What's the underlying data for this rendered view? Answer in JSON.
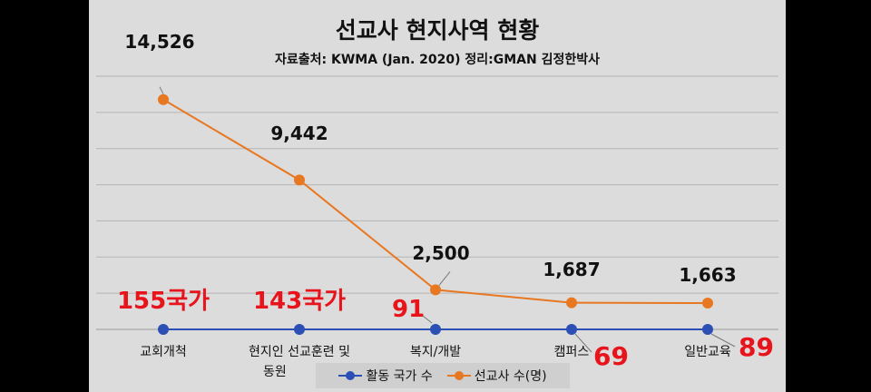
{
  "title": "선교사 현지사역 현황",
  "subtitle": "자료출처: KWMA (Jan. 2020) 정리:GMAN 김정한박사",
  "chart_data": {
    "type": "line",
    "categories": [
      "교회개척",
      "현지인 선교훈련 및 동원",
      "복지/개발",
      "캠퍼스",
      "일반교육"
    ],
    "series": [
      {
        "name": "활동 국가 수",
        "values": [
          155,
          143,
          91,
          69,
          89
        ],
        "color": "#2b4fb5"
      },
      {
        "name": "선교사 수(명)",
        "values": [
          14526,
          9442,
          2500,
          1687,
          1663
        ],
        "color": "#e87722"
      }
    ],
    "data_labels": {
      "missionaries": [
        "14,526",
        "9,442",
        "2,500",
        "1,687",
        "1,663"
      ],
      "countries": [
        "155국가",
        "143국가",
        "91",
        "69",
        "89"
      ]
    },
    "category_labels_display": [
      [
        "교회개척"
      ],
      [
        "현지인 선교훈련 및",
        "동원"
      ],
      [
        "복지/개발"
      ],
      [
        "캠퍼스"
      ],
      [
        "일반교육"
      ]
    ],
    "ylim": [
      0,
      16000
    ],
    "grid": true,
    "legend_position": "bottom"
  }
}
